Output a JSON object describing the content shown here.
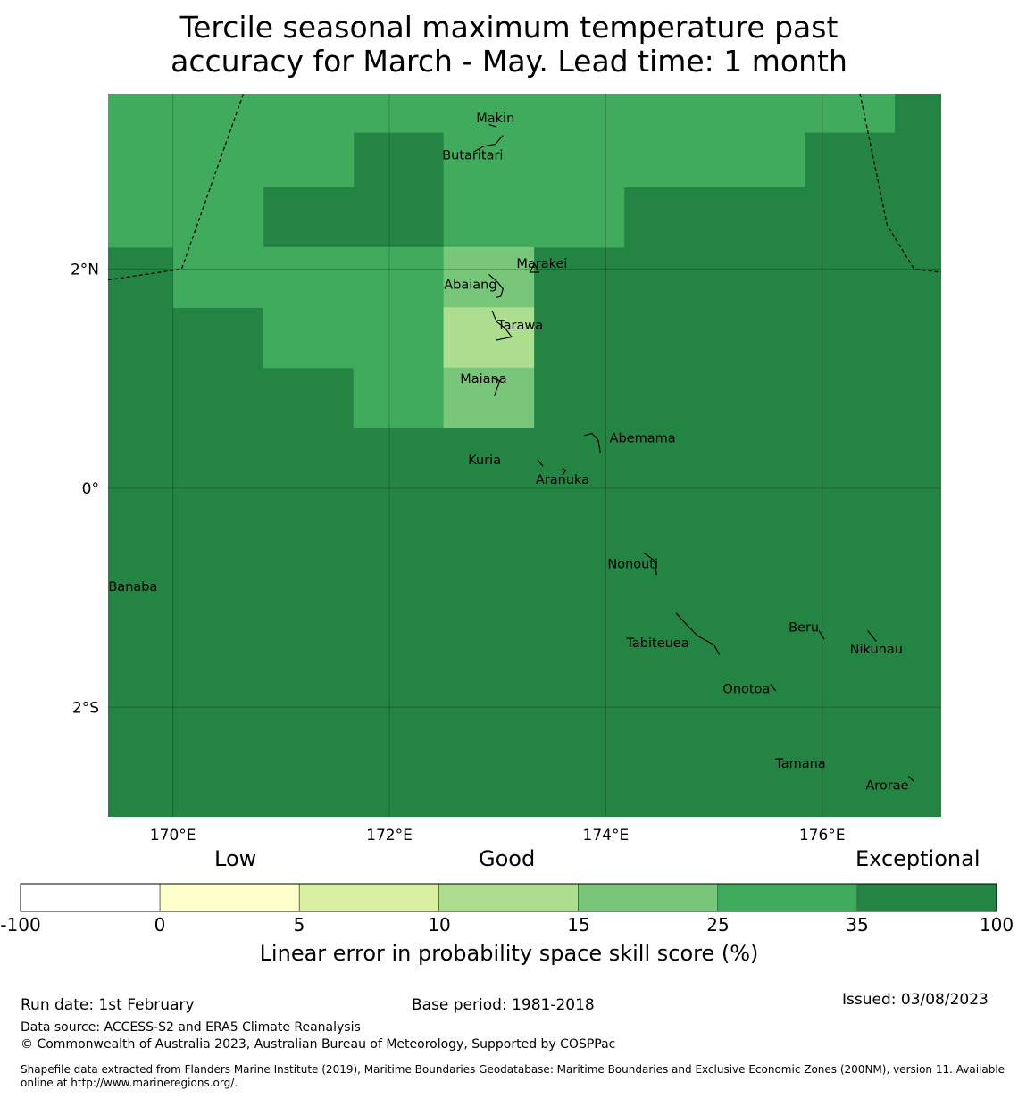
{
  "title": {
    "line1": "Tercile seasonal maximum temperature past",
    "line2": "accuracy for March - May. Lead time: 1 month"
  },
  "map": {
    "lon_range": [
      169.4,
      177.1
    ],
    "lat_range": [
      -3.0,
      3.6
    ],
    "x_ticks": [
      {
        "value": 170,
        "label": "170°E"
      },
      {
        "value": 172,
        "label": "172°E"
      },
      {
        "value": 174,
        "label": "174°E"
      },
      {
        "value": 176,
        "label": "176°E"
      }
    ],
    "y_ticks": [
      {
        "value": 2,
        "label": "2°N"
      },
      {
        "value": 0,
        "label": "0°"
      },
      {
        "value": -2,
        "label": "2°S"
      }
    ],
    "background_category": 6,
    "cells": [
      {
        "lon": [
          169.4,
          170.0
        ],
        "lat": [
          2.2,
          3.6
        ],
        "cat": 5
      },
      {
        "lon": [
          170.0,
          170.833
        ],
        "lat": [
          2.2,
          3.6
        ],
        "cat": 5
      },
      {
        "lon": [
          170.0,
          170.833
        ],
        "lat": [
          1.65,
          2.2
        ],
        "cat": 5
      },
      {
        "lon": [
          170.833,
          171.667
        ],
        "lat": [
          2.75,
          3.6
        ],
        "cat": 5
      },
      {
        "lon": [
          170.833,
          172.5
        ],
        "lat": [
          1.1,
          2.2
        ],
        "cat": 5
      },
      {
        "lon": [
          171.667,
          172.5
        ],
        "lat": [
          0.55,
          1.1
        ],
        "cat": 5
      },
      {
        "lon": [
          171.667,
          172.5
        ],
        "lat": [
          3.25,
          3.6
        ],
        "cat": 5
      },
      {
        "lon": [
          172.5,
          174.167
        ],
        "lat": [
          2.75,
          3.6
        ],
        "cat": 5
      },
      {
        "lon": [
          172.5,
          174.167
        ],
        "lat": [
          2.2,
          2.75
        ],
        "cat": 5
      },
      {
        "lon": [
          174.167,
          175.833
        ],
        "lat": [
          2.75,
          3.6
        ],
        "cat": 5
      },
      {
        "lon": [
          175.833,
          176.667
        ],
        "lat": [
          3.25,
          3.6
        ],
        "cat": 5
      },
      {
        "lon": [
          172.5,
          173.333
        ],
        "lat": [
          1.65,
          2.2
        ],
        "cat": 4
      },
      {
        "lon": [
          172.5,
          173.333
        ],
        "lat": [
          1.1,
          1.65
        ],
        "cat": 3
      },
      {
        "lon": [
          172.5,
          173.333
        ],
        "lat": [
          0.55,
          1.1
        ],
        "cat": 4
      }
    ],
    "eez_lines": [
      [
        [
          169.4,
          1.9
        ],
        [
          170.08,
          2.0
        ],
        [
          170.65,
          3.6
        ]
      ],
      [
        [
          176.35,
          3.6
        ],
        [
          176.6,
          2.4
        ],
        [
          176.85,
          2.0
        ],
        [
          177.1,
          1.97
        ]
      ]
    ],
    "islands": [
      {
        "name": "Makin",
        "lon": 172.98,
        "lat": 3.34,
        "path": [
          [
            172.92,
            3.32
          ],
          [
            172.98,
            3.3
          ]
        ]
      },
      {
        "name": "Butaritari",
        "lon": 172.77,
        "lat": 3.0,
        "path": [
          [
            172.78,
            3.07
          ],
          [
            172.87,
            3.12
          ],
          [
            172.98,
            3.14
          ],
          [
            173.05,
            3.22
          ]
        ]
      },
      {
        "name": "Marakei",
        "lon": 173.41,
        "lat": 2.01,
        "path": [
          [
            173.34,
            2.05
          ],
          [
            173.3,
            1.97
          ],
          [
            173.38,
            1.97
          ],
          [
            173.34,
            2.05
          ]
        ]
      },
      {
        "name": "Abaiang",
        "lon": 172.75,
        "lat": 1.82,
        "path": [
          [
            172.92,
            1.95
          ],
          [
            173.0,
            1.88
          ],
          [
            173.05,
            1.82
          ],
          [
            173.03,
            1.75
          ],
          [
            172.99,
            1.74
          ]
        ]
      },
      {
        "name": "Tarawa",
        "lon": 173.21,
        "lat": 1.45,
        "path": [
          [
            172.95,
            1.62
          ],
          [
            172.99,
            1.52
          ],
          [
            173.07,
            1.46
          ],
          [
            173.13,
            1.38
          ],
          [
            173.03,
            1.36
          ],
          [
            172.99,
            1.35
          ]
        ]
      },
      {
        "name": "Maiana",
        "lon": 172.87,
        "lat": 0.96,
        "path": [
          [
            172.96,
            1.0
          ],
          [
            173.02,
            0.98
          ],
          [
            172.97,
            0.84
          ]
        ]
      },
      {
        "name": "Abemama",
        "lon": 174.34,
        "lat": 0.42,
        "path": [
          [
            173.8,
            0.48
          ],
          [
            173.87,
            0.5
          ],
          [
            173.93,
            0.44
          ],
          [
            173.95,
            0.32
          ]
        ]
      },
      {
        "name": "Kuria",
        "lon": 172.88,
        "lat": 0.22,
        "path": [
          [
            173.37,
            0.26
          ],
          [
            173.42,
            0.2
          ]
        ]
      },
      {
        "name": "Aranuka",
        "lon": 173.6,
        "lat": 0.04,
        "path": [
          [
            173.6,
            0.18
          ],
          [
            173.63,
            0.16
          ],
          [
            173.6,
            0.12
          ]
        ]
      },
      {
        "name": "Nonouti",
        "lon": 174.25,
        "lat": -0.73,
        "path": [
          [
            174.35,
            -0.59
          ],
          [
            174.45,
            -0.66
          ],
          [
            174.47,
            -0.79
          ]
        ]
      },
      {
        "name": "Banaba",
        "lon": 169.63,
        "lat": -0.94,
        "path": [
          [
            169.53,
            -0.89
          ],
          [
            169.55,
            -0.89
          ]
        ]
      },
      {
        "name": "Tabiteuea",
        "lon": 174.48,
        "lat": -1.45,
        "path": [
          [
            174.65,
            -1.14
          ],
          [
            174.75,
            -1.25
          ],
          [
            174.85,
            -1.35
          ],
          [
            175.0,
            -1.43
          ],
          [
            175.05,
            -1.52
          ]
        ]
      },
      {
        "name": "Beru",
        "lon": 175.83,
        "lat": -1.31,
        "path": [
          [
            175.97,
            -1.3
          ],
          [
            176.02,
            -1.38
          ]
        ]
      },
      {
        "name": "Nikunau",
        "lon": 176.5,
        "lat": -1.51,
        "path": [
          [
            176.42,
            -1.3
          ],
          [
            176.5,
            -1.4
          ]
        ]
      },
      {
        "name": "Onotoa",
        "lon": 175.3,
        "lat": -1.87,
        "path": [
          [
            175.52,
            -1.79
          ],
          [
            175.57,
            -1.85
          ]
        ]
      },
      {
        "name": "Tamana",
        "lon": 175.8,
        "lat": -2.55,
        "path": [
          [
            175.98,
            -2.5
          ],
          [
            176.02,
            -2.52
          ]
        ]
      },
      {
        "name": "Arorae",
        "lon": 176.6,
        "lat": -2.75,
        "path": [
          [
            176.8,
            -2.63
          ],
          [
            176.85,
            -2.68
          ]
        ]
      }
    ]
  },
  "colorbar": {
    "group_labels": [
      "Low",
      "Good",
      "Exceptional"
    ],
    "tick_labels": [
      "-100",
      "0",
      "5",
      "10",
      "15",
      "25",
      "35",
      "100"
    ],
    "colors": [
      "#ffffff",
      "#ffffcc",
      "#d9f0a3",
      "#addd8e",
      "#78c679",
      "#41ab5d",
      "#238443"
    ],
    "label": "Linear error in probability space skill score (%)"
  },
  "footer": {
    "run_date": "Run date: 1st February",
    "base_period": "Base period: 1981-2018",
    "issued": "Issued: 03/08/2023",
    "data_source": "Data source: ACCESS-S2 and ERA5 Climate Reanalysis",
    "copyright": "© Commonwealth of Australia 2023, Australian Bureau of Meteorology, Supported by COSPPac",
    "shapefile": "Shapefile data extracted from Flanders Marine Institute (2019), Maritime Boundaries Geodatabase: Maritime Boundaries and Exclusive Economic Zones (200NM), version 11. Available online at http://www.marineregions.org/."
  }
}
